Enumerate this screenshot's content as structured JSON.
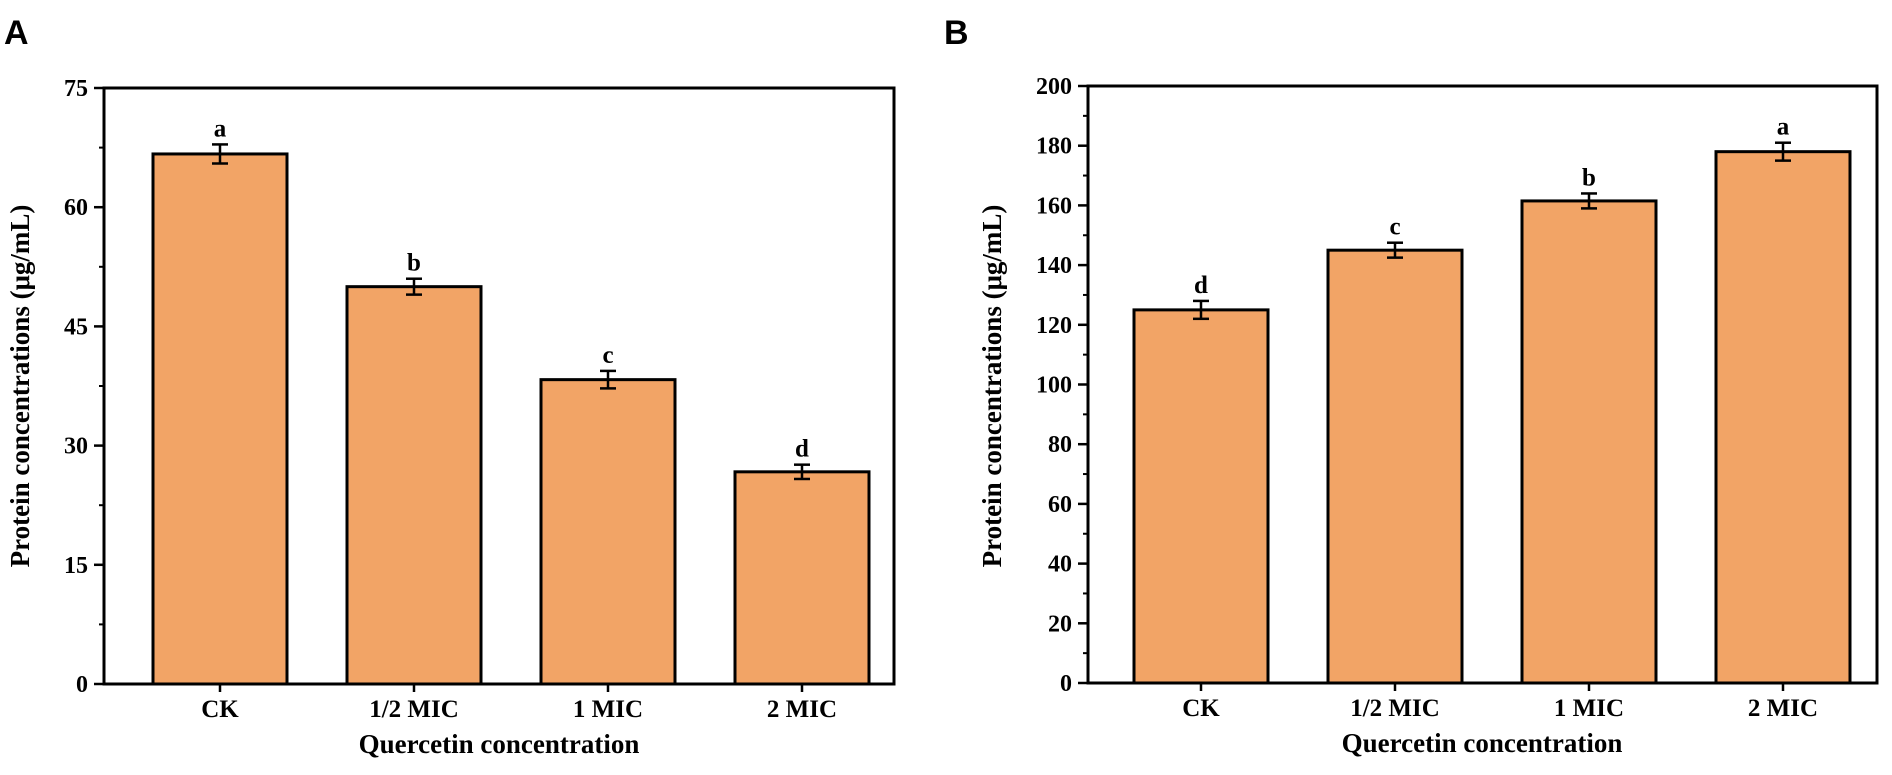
{
  "chart_data": [
    {
      "panel": "A",
      "type": "bar",
      "title": "",
      "xlabel": "Quercetin concentration",
      "ylabel": "Protein concentrations (μg/mL)",
      "categories": [
        "CK",
        "1/2 MIC",
        "1 MIC",
        "2 MIC"
      ],
      "values": [
        66.7,
        50.0,
        38.3,
        26.7
      ],
      "errors": [
        1.2,
        1.0,
        1.1,
        0.9
      ],
      "significance": [
        "a",
        "b",
        "c",
        "d"
      ],
      "ylim": [
        0,
        75
      ],
      "yticks": [
        0,
        15,
        30,
        45,
        60,
        75
      ],
      "bar_color": "#F2A466",
      "grid": false,
      "legend": "none"
    },
    {
      "panel": "B",
      "type": "bar",
      "title": "",
      "xlabel": "Quercetin concentration",
      "ylabel": "Protein concentrations (μg/mL)",
      "categories": [
        "CK",
        "1/2 MIC",
        "1 MIC",
        "2 MIC"
      ],
      "values": [
        125,
        145,
        161.5,
        178
      ],
      "errors": [
        3,
        2.5,
        2.5,
        3
      ],
      "significance": [
        "d",
        "c",
        "b",
        "a"
      ],
      "ylim": [
        0,
        200
      ],
      "yticks": [
        0,
        20,
        40,
        60,
        80,
        100,
        120,
        140,
        160,
        180,
        200
      ],
      "bar_color": "#F2A466",
      "grid": false,
      "legend": "none"
    }
  ]
}
